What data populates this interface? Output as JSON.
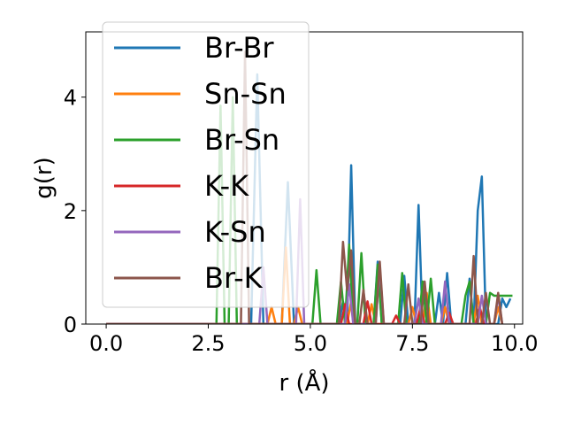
{
  "chart_data": {
    "type": "line",
    "xlabel": "r (Å)",
    "ylabel": "g(r)",
    "xlim": [
      -0.5,
      10.2
    ],
    "ylim": [
      0,
      5.15
    ],
    "xticks": [
      0.0,
      2.5,
      5.0,
      7.5,
      10.0
    ],
    "xtick_labels": [
      "0.0",
      "2.5",
      "5.0",
      "7.5",
      "10.0"
    ],
    "yticks": [
      0,
      2,
      4
    ],
    "ytick_labels": [
      "0",
      "2",
      "4"
    ],
    "grid": false,
    "legend": "upper left",
    "series": [
      {
        "name": "Br-Br",
        "color": "#1f77b4",
        "points": [
          [
            0,
            0
          ],
          [
            3.55,
            0
          ],
          [
            3.7,
            4.4
          ],
          [
            3.85,
            0
          ],
          [
            4.3,
            0
          ],
          [
            4.45,
            2.5
          ],
          [
            4.6,
            0
          ],
          [
            5.7,
            0
          ],
          [
            5.8,
            0.4
          ],
          [
            5.9,
            0
          ],
          [
            6.0,
            2.8
          ],
          [
            6.1,
            0
          ],
          [
            6.55,
            0
          ],
          [
            6.65,
            1.1
          ],
          [
            6.75,
            0
          ],
          [
            7.2,
            0
          ],
          [
            7.3,
            0.85
          ],
          [
            7.4,
            0
          ],
          [
            7.55,
            0
          ],
          [
            7.65,
            2.1
          ],
          [
            7.75,
            0
          ],
          [
            8.05,
            0
          ],
          [
            8.15,
            0.55
          ],
          [
            8.25,
            0
          ],
          [
            8.35,
            0.9
          ],
          [
            8.45,
            0
          ],
          [
            8.8,
            0
          ],
          [
            8.9,
            0.8
          ],
          [
            9.0,
            0
          ],
          [
            9.1,
            2.0
          ],
          [
            9.2,
            2.6
          ],
          [
            9.3,
            0
          ],
          [
            9.6,
            0
          ],
          [
            9.7,
            0.45
          ],
          [
            9.8,
            0.3
          ],
          [
            9.9,
            0.45
          ]
        ]
      },
      {
        "name": "Sn-Sn",
        "color": "#ff7f0e",
        "points": [
          [
            0,
            0
          ],
          [
            3.95,
            0
          ],
          [
            4.05,
            0.3
          ],
          [
            4.15,
            0
          ],
          [
            4.3,
            0
          ],
          [
            4.4,
            1.35
          ],
          [
            4.5,
            0
          ],
          [
            4.6,
            0
          ],
          [
            4.7,
            0.3
          ],
          [
            4.8,
            0
          ],
          [
            5.9,
            0
          ],
          [
            6.0,
            0.4
          ],
          [
            6.1,
            0
          ],
          [
            6.4,
            0
          ],
          [
            6.5,
            0.35
          ],
          [
            6.6,
            0
          ],
          [
            7.4,
            0
          ],
          [
            7.5,
            0.3
          ],
          [
            7.6,
            0
          ],
          [
            7.75,
            0
          ],
          [
            7.85,
            0.55
          ],
          [
            7.95,
            0
          ],
          [
            8.2,
            0
          ],
          [
            8.3,
            0.3
          ],
          [
            8.4,
            0
          ],
          [
            9.0,
            0
          ],
          [
            9.1,
            0.5
          ],
          [
            9.2,
            0
          ],
          [
            9.5,
            0
          ],
          [
            9.6,
            0.3
          ],
          [
            9.7,
            0
          ]
        ]
      },
      {
        "name": "Br-Sn",
        "color": "#2ca02c",
        "points": [
          [
            0,
            0
          ],
          [
            2.7,
            0
          ],
          [
            2.8,
            3.85
          ],
          [
            2.9,
            0
          ],
          [
            3.0,
            0
          ],
          [
            3.1,
            4.0
          ],
          [
            3.2,
            0
          ],
          [
            5.05,
            0
          ],
          [
            5.15,
            0.95
          ],
          [
            5.25,
            0
          ],
          [
            5.65,
            0
          ],
          [
            5.75,
            0.75
          ],
          [
            5.85,
            0
          ],
          [
            5.95,
            1.4
          ],
          [
            6.05,
            0
          ],
          [
            6.15,
            0
          ],
          [
            6.25,
            1.25
          ],
          [
            6.35,
            0
          ],
          [
            6.55,
            0
          ],
          [
            6.65,
            1.05
          ],
          [
            6.75,
            0
          ],
          [
            7.15,
            0
          ],
          [
            7.25,
            0.9
          ],
          [
            7.35,
            0
          ],
          [
            7.65,
            0
          ],
          [
            7.75,
            0.75
          ],
          [
            7.85,
            0
          ],
          [
            7.95,
            0.8
          ],
          [
            8.05,
            0
          ],
          [
            8.7,
            0
          ],
          [
            8.8,
            0.5
          ],
          [
            8.9,
            0.75
          ],
          [
            9.0,
            0
          ],
          [
            9.3,
            0
          ],
          [
            9.4,
            0.55
          ],
          [
            9.5,
            0.5
          ],
          [
            9.95,
            0.5
          ]
        ]
      },
      {
        "name": "K-K",
        "color": "#d62728",
        "points": [
          [
            0,
            0
          ],
          [
            5.75,
            0
          ],
          [
            5.85,
            0.35
          ],
          [
            5.95,
            0
          ],
          [
            6.3,
            0
          ],
          [
            6.4,
            0.4
          ],
          [
            6.5,
            0
          ],
          [
            7.0,
            0
          ],
          [
            7.1,
            0.15
          ],
          [
            7.2,
            0
          ],
          [
            7.6,
            0
          ],
          [
            7.7,
            0.3
          ],
          [
            7.8,
            0
          ],
          [
            8.3,
            0
          ],
          [
            8.4,
            0.2
          ],
          [
            8.5,
            0
          ],
          [
            9.05,
            0
          ],
          [
            9.15,
            0.3
          ],
          [
            9.25,
            0
          ]
        ]
      },
      {
        "name": "K-Sn",
        "color": "#9467bd",
        "points": [
          [
            0,
            0
          ],
          [
            3.75,
            0
          ],
          [
            3.85,
            1.0
          ],
          [
            3.95,
            0
          ],
          [
            4.65,
            0
          ],
          [
            4.75,
            2.2
          ],
          [
            4.85,
            0
          ],
          [
            5.85,
            0
          ],
          [
            5.95,
            0.7
          ],
          [
            6.05,
            0
          ],
          [
            6.6,
            0
          ],
          [
            6.7,
            1.0
          ],
          [
            6.8,
            0
          ],
          [
            7.55,
            0
          ],
          [
            7.65,
            0.45
          ],
          [
            7.75,
            0
          ],
          [
            8.2,
            0
          ],
          [
            8.3,
            0.75
          ],
          [
            8.4,
            0
          ],
          [
            9.1,
            0
          ],
          [
            9.2,
            0.5
          ],
          [
            9.3,
            0
          ],
          [
            9.5,
            0
          ],
          [
            9.6,
            0.5
          ],
          [
            9.7,
            0
          ]
        ]
      },
      {
        "name": "Br-K",
        "color": "#8c564b",
        "points": [
          [
            0,
            0
          ],
          [
            3.3,
            0
          ],
          [
            3.4,
            4.8
          ],
          [
            3.5,
            0
          ],
          [
            5.7,
            0
          ],
          [
            5.8,
            1.45
          ],
          [
            5.9,
            0.6
          ],
          [
            6.0,
            1.3
          ],
          [
            6.1,
            0
          ],
          [
            6.2,
            0
          ],
          [
            6.3,
            0.6
          ],
          [
            6.4,
            0
          ],
          [
            6.6,
            0
          ],
          [
            6.7,
            1.1
          ],
          [
            6.8,
            0
          ],
          [
            7.3,
            0
          ],
          [
            7.4,
            0.7
          ],
          [
            7.5,
            0
          ],
          [
            7.7,
            0
          ],
          [
            7.8,
            0.75
          ],
          [
            7.9,
            0
          ],
          [
            8.9,
            0
          ],
          [
            9.0,
            1.2
          ],
          [
            9.1,
            0
          ],
          [
            9.2,
            0
          ],
          [
            9.3,
            0.55
          ],
          [
            9.4,
            0
          ],
          [
            9.5,
            0
          ],
          [
            9.6,
            0.55
          ],
          [
            9.7,
            0
          ]
        ]
      }
    ]
  }
}
